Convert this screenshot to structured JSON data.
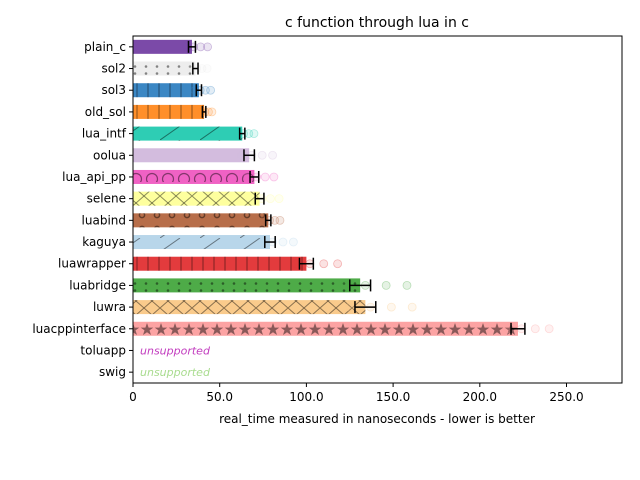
{
  "chart_data": {
    "type": "bar",
    "orientation": "horizontal",
    "title": "c function through lua in c",
    "xlabel": "real_time measured in nanoseconds - lower is better",
    "ylabel": "",
    "xlim": [
      0,
      282
    ],
    "x_ticks": [
      0,
      50,
      100,
      150,
      200,
      250
    ],
    "x_tick_labels": [
      "0",
      "50.0",
      "100.0",
      "150.0",
      "200.0",
      "250.0"
    ],
    "grid": false,
    "series": [
      {
        "name": "plain_c",
        "value": 34,
        "err": 2,
        "color": "#7b4aa8",
        "pattern": "none"
      },
      {
        "name": "sol2",
        "value": 36,
        "err": 1.5,
        "color": "#ededed",
        "pattern": "dots"
      },
      {
        "name": "sol3",
        "value": 38,
        "err": 1.5,
        "color": "#3b87c4",
        "pattern": "vlines"
      },
      {
        "name": "old_sol",
        "value": 41,
        "err": 1,
        "color": "#ff8f2a",
        "pattern": "vlines"
      },
      {
        "name": "lua_intf",
        "value": 63,
        "err": 1.5,
        "color": "#2ecdb4",
        "pattern": "diag"
      },
      {
        "name": "oolua",
        "value": 67,
        "err": 3,
        "color": "#d3bcde",
        "pattern": "none"
      },
      {
        "name": "lua_api_pp",
        "value": 70,
        "err": 2.5,
        "color": "#f062c4",
        "pattern": "circles"
      },
      {
        "name": "selene",
        "value": 73,
        "err": 2.5,
        "color": "#feff9e",
        "pattern": "cross"
      },
      {
        "name": "luabind",
        "value": 78,
        "err": 1.5,
        "color": "#b76e4a",
        "pattern": "rings"
      },
      {
        "name": "kaguya",
        "value": 79,
        "err": 3,
        "color": "#b8d6ea",
        "pattern": "diag"
      },
      {
        "name": "luawrapper",
        "value": 100,
        "err": 4,
        "color": "#e33b3d",
        "pattern": "vlines"
      },
      {
        "name": "luabridge",
        "value": 131,
        "err": 6,
        "color": "#4eab48",
        "pattern": "dots"
      },
      {
        "name": "luwra",
        "value": 134,
        "err": 6,
        "color": "#facb8c",
        "pattern": "cross"
      },
      {
        "name": "luacppinterface",
        "value": 222,
        "err": 4,
        "color": "#fca3a3",
        "pattern": "stars"
      },
      {
        "name": "toluapp",
        "value": null,
        "color": "#c23dbf",
        "pattern": "none",
        "note": "unsupported"
      },
      {
        "name": "swig",
        "value": null,
        "color": "#a9dc8f",
        "pattern": "none",
        "note": "unsupported"
      }
    ]
  }
}
